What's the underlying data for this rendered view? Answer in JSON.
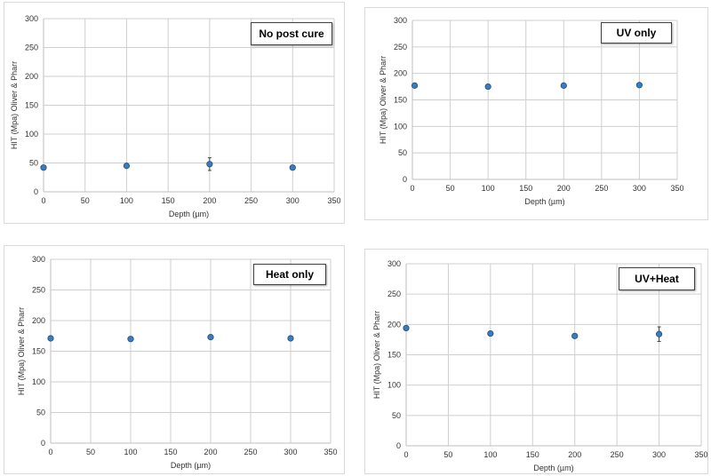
{
  "colors": {
    "marker": "#3a7cc0",
    "marker_edge": "#1f4e79",
    "grid": "#cfcfcf",
    "errorbar": "#404040"
  },
  "chart_data": [
    {
      "type": "scatter",
      "title": "No post cure",
      "xlabel": "Depth (µm)",
      "ylabel": "HIT (Mpa) Oliver & Pharr",
      "xlim": [
        0,
        350
      ],
      "ylim": [
        0,
        300
      ],
      "xticks": [
        "0",
        "50",
        "100",
        "150",
        "200",
        "250",
        "300",
        "350"
      ],
      "yticks": [
        "0",
        "50",
        "100",
        "150",
        "200",
        "250",
        "300"
      ],
      "grid": true,
      "points": [
        {
          "x": 0,
          "y": 42,
          "err": 0
        },
        {
          "x": 100,
          "y": 45,
          "err": 3
        },
        {
          "x": 200,
          "y": 48,
          "err": 11
        },
        {
          "x": 300,
          "y": 42,
          "err": 0
        }
      ]
    },
    {
      "type": "scatter",
      "title": "UV only",
      "xlabel": "Depth (µm)",
      "ylabel": "HIT (Mpa) Oliver & Pharr",
      "xlim": [
        0,
        350
      ],
      "ylim": [
        0,
        300
      ],
      "xticks": [
        "0",
        "50",
        "100",
        "150",
        "200",
        "250",
        "300",
        "350"
      ],
      "yticks": [
        "0",
        "50",
        "100",
        "150",
        "200",
        "250",
        "300"
      ],
      "grid": true,
      "points": [
        {
          "x": 3,
          "y": 177,
          "err": 0
        },
        {
          "x": 100,
          "y": 175,
          "err": 0
        },
        {
          "x": 200,
          "y": 177,
          "err": 0
        },
        {
          "x": 300,
          "y": 178,
          "err": 0
        }
      ]
    },
    {
      "type": "scatter",
      "title": "Heat only",
      "xlabel": "Depth (µm)",
      "ylabel": "HIT (Mpa) Oliver & Pharr",
      "xlim": [
        0,
        350
      ],
      "ylim": [
        0,
        300
      ],
      "xticks": [
        "0",
        "50",
        "100",
        "150",
        "200",
        "250",
        "300",
        "350"
      ],
      "yticks": [
        "0",
        "50",
        "100",
        "150",
        "200",
        "250",
        "300"
      ],
      "grid": true,
      "points": [
        {
          "x": 0,
          "y": 171,
          "err": 0
        },
        {
          "x": 100,
          "y": 170,
          "err": 0
        },
        {
          "x": 200,
          "y": 173,
          "err": 0
        },
        {
          "x": 300,
          "y": 171,
          "err": 0
        }
      ]
    },
    {
      "type": "scatter",
      "title": "UV+Heat",
      "xlabel": "Depth (µm)",
      "ylabel": "HIT (Mpa) Oliver & Pharr",
      "xlim": [
        0,
        350
      ],
      "ylim": [
        0,
        300
      ],
      "xticks": [
        "0",
        "50",
        "100",
        "150",
        "200",
        "250",
        "300",
        "350"
      ],
      "yticks": [
        "0",
        "50",
        "100",
        "150",
        "200",
        "250",
        "300"
      ],
      "grid": true,
      "points": [
        {
          "x": 0,
          "y": 194,
          "err": 0
        },
        {
          "x": 100,
          "y": 185,
          "err": 3
        },
        {
          "x": 200,
          "y": 181,
          "err": 0
        },
        {
          "x": 300,
          "y": 184,
          "err": 12
        }
      ]
    }
  ]
}
